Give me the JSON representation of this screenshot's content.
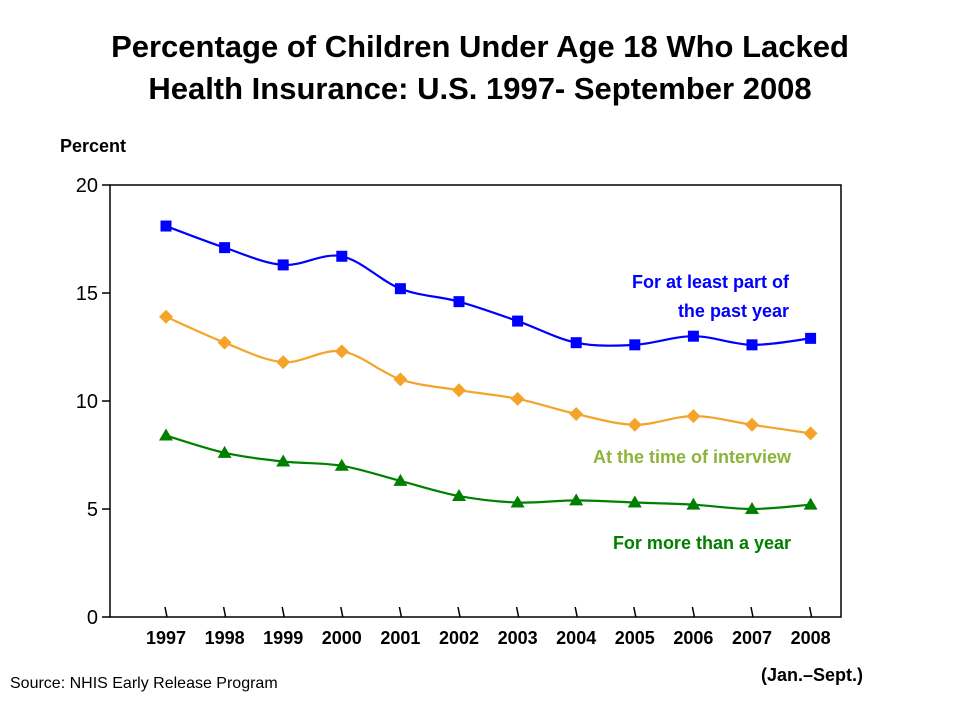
{
  "title_lines": [
    "Percentage of Children Under Age 18 Who Lacked",
    "Health Insurance: U.S. 1997- September 2008"
  ],
  "source": "Source:  NHIS Early Release Program",
  "chart_data": {
    "type": "line",
    "title": "Percentage of Children Under Age 18 Who Lacked Health Insurance: U.S. 1997- September 2008",
    "ylabel": "Percent",
    "xlabel": "",
    "x_tick_note": "(Jan.–Sept.)",
    "x": [
      "1997",
      "1998",
      "1999",
      "2000",
      "2001",
      "2002",
      "2003",
      "2004",
      "2005",
      "2006",
      "2007",
      "2008"
    ],
    "ylim": [
      0,
      20
    ],
    "yticks": [
      0,
      5,
      10,
      15,
      20
    ],
    "grid": false,
    "series": [
      {
        "name": "For at least part of the past year",
        "label_lines": [
          "For at least part of",
          "the past year"
        ],
        "color": "#0000FF",
        "marker": "square",
        "values": [
          18.1,
          17.1,
          16.3,
          16.7,
          15.2,
          14.6,
          13.7,
          12.7,
          12.6,
          13.0,
          12.6,
          12.9
        ]
      },
      {
        "name": "At the time of interview",
        "label_lines": [
          "At the time of interview"
        ],
        "label_color": "#8DB33A",
        "color": "#F4A42A",
        "marker": "diamond",
        "values": [
          13.9,
          12.7,
          11.8,
          12.3,
          11.0,
          10.5,
          10.1,
          9.4,
          8.9,
          9.3,
          8.9,
          8.5
        ]
      },
      {
        "name": "For more than a year",
        "label_lines": [
          "For more than a year"
        ],
        "color": "#008000",
        "marker": "triangle",
        "values": [
          8.4,
          7.6,
          7.2,
          7.0,
          6.3,
          5.6,
          5.3,
          5.4,
          5.3,
          5.2,
          5.0,
          5.2
        ]
      }
    ]
  }
}
